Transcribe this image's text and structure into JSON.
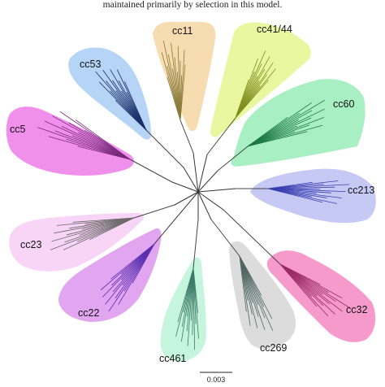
{
  "caption": "maintained primarily by selection in this model.",
  "clades": [
    {
      "label": "cc11",
      "color": "#f6dcb0",
      "branch_color": "#8a7a3a"
    },
    {
      "label": "cc41/44",
      "color": "#e9f7a0",
      "branch_color": "#7f8f1f"
    },
    {
      "label": "cc60",
      "color": "#a8f0c4",
      "branch_color": "#1f7a45"
    },
    {
      "label": "cc213",
      "color": "#c7c9f5",
      "branch_color": "#3a3fb0"
    },
    {
      "label": "cc32",
      "color": "#f59acb",
      "branch_color": "#9a2a66"
    },
    {
      "label": "cc269",
      "color": "#dcdcdc",
      "branch_color": "#4f6660"
    },
    {
      "label": "cc461",
      "color": "#c5f5dc",
      "branch_color": "#3c7b68"
    },
    {
      "label": "cc22",
      "color": "#e2a5f0",
      "branch_color": "#5a2fb0"
    },
    {
      "label": "cc23",
      "color": "#f8d4f6",
      "branch_color": "#6a6a6a"
    },
    {
      "label": "cc5",
      "color": "#f190ec",
      "branch_color": "#7a2a7a"
    },
    {
      "label": "cc53",
      "color": "#b6d4f6",
      "branch_color": "#1a2f6a"
    }
  ],
  "scale_bar": {
    "label": "0.003"
  }
}
